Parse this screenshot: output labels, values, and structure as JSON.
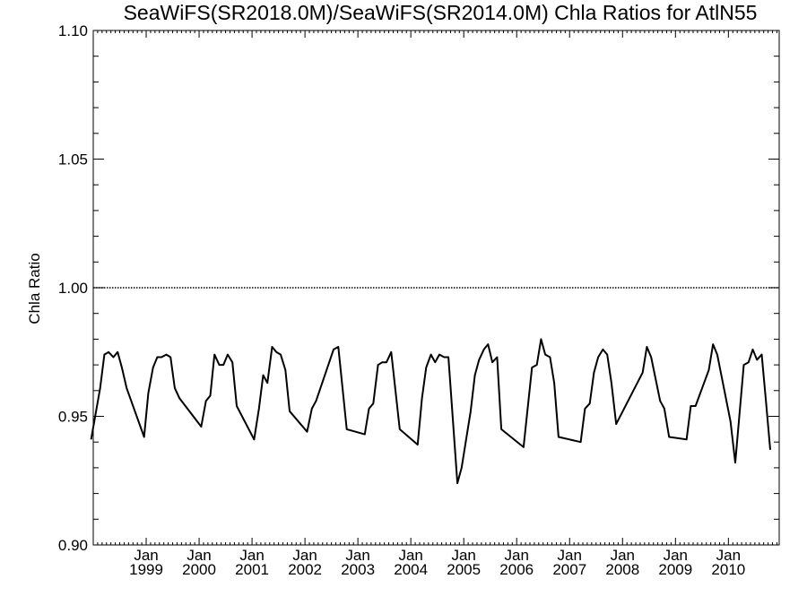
{
  "chart_data": {
    "type": "line",
    "title": "SeaWiFS(SR2018.0M)/SeaWiFS(SR2014.0M)  Chla Ratios for AtlN55",
    "xlabel": "",
    "ylabel": "Chla Ratio",
    "xlim": [
      1998.0,
      2010.96
    ],
    "ylim": [
      0.9,
      1.1
    ],
    "yticks": [
      {
        "value": 0.9,
        "label": "0.90"
      },
      {
        "value": 0.95,
        "label": "0.95"
      },
      {
        "value": 1.0,
        "label": "1.00"
      },
      {
        "value": 1.05,
        "label": "1.05"
      },
      {
        "value": 1.1,
        "label": "1.10"
      }
    ],
    "xticks": [
      {
        "value": 1999,
        "month": "Jan",
        "year": "1999"
      },
      {
        "value": 2000,
        "month": "Jan",
        "year": "2000"
      },
      {
        "value": 2001,
        "month": "Jan",
        "year": "2001"
      },
      {
        "value": 2002,
        "month": "Jan",
        "year": "2002"
      },
      {
        "value": 2003,
        "month": "Jan",
        "year": "2003"
      },
      {
        "value": 2004,
        "month": "Jan",
        "year": "2004"
      },
      {
        "value": 2005,
        "month": "Jan",
        "year": "2005"
      },
      {
        "value": 2006,
        "month": "Jan",
        "year": "2006"
      },
      {
        "value": 2007,
        "month": "Jan",
        "year": "2007"
      },
      {
        "value": 2008,
        "month": "Jan",
        "year": "2008"
      },
      {
        "value": 2009,
        "month": "Jan",
        "year": "2009"
      },
      {
        "value": 2010,
        "month": "Jan",
        "year": "2010"
      }
    ],
    "reference_line": 1.0,
    "grid": false,
    "series": [
      {
        "color": "#000000",
        "points": [
          [
            1997.96,
            0.941
          ],
          [
            1998.13,
            0.961
          ],
          [
            1998.21,
            0.974
          ],
          [
            1998.29,
            0.975
          ],
          [
            1998.38,
            0.973
          ],
          [
            1998.46,
            0.975
          ],
          [
            1998.54,
            0.969
          ],
          [
            1998.63,
            0.961
          ],
          [
            1998.96,
            0.942
          ],
          [
            1999.04,
            0.959
          ],
          [
            1999.13,
            0.969
          ],
          [
            1999.21,
            0.973
          ],
          [
            1999.29,
            0.973
          ],
          [
            1999.38,
            0.974
          ],
          [
            1999.46,
            0.973
          ],
          [
            1999.54,
            0.961
          ],
          [
            1999.63,
            0.957
          ],
          [
            2000.04,
            0.946
          ],
          [
            2000.13,
            0.956
          ],
          [
            2000.21,
            0.958
          ],
          [
            2000.29,
            0.974
          ],
          [
            2000.38,
            0.97
          ],
          [
            2000.46,
            0.97
          ],
          [
            2000.54,
            0.974
          ],
          [
            2000.63,
            0.971
          ],
          [
            2000.71,
            0.954
          ],
          [
            2001.04,
            0.941
          ],
          [
            2001.13,
            0.953
          ],
          [
            2001.21,
            0.966
          ],
          [
            2001.29,
            0.963
          ],
          [
            2001.38,
            0.977
          ],
          [
            2001.46,
            0.975
          ],
          [
            2001.54,
            0.974
          ],
          [
            2001.63,
            0.968
          ],
          [
            2001.71,
            0.952
          ],
          [
            2002.04,
            0.944
          ],
          [
            2002.13,
            0.953
          ],
          [
            2002.21,
            0.956
          ],
          [
            2002.54,
            0.976
          ],
          [
            2002.63,
            0.977
          ],
          [
            2002.79,
            0.945
          ],
          [
            2003.13,
            0.943
          ],
          [
            2003.21,
            0.953
          ],
          [
            2003.29,
            0.955
          ],
          [
            2003.38,
            0.97
          ],
          [
            2003.46,
            0.971
          ],
          [
            2003.54,
            0.971
          ],
          [
            2003.63,
            0.975
          ],
          [
            2003.79,
            0.945
          ],
          [
            2004.13,
            0.939
          ],
          [
            2004.21,
            0.957
          ],
          [
            2004.29,
            0.969
          ],
          [
            2004.38,
            0.974
          ],
          [
            2004.46,
            0.971
          ],
          [
            2004.54,
            0.974
          ],
          [
            2004.63,
            0.973
          ],
          [
            2004.71,
            0.973
          ],
          [
            2004.88,
            0.924
          ],
          [
            2004.96,
            0.93
          ],
          [
            2005.13,
            0.952
          ],
          [
            2005.21,
            0.966
          ],
          [
            2005.29,
            0.972
          ],
          [
            2005.38,
            0.976
          ],
          [
            2005.46,
            0.978
          ],
          [
            2005.54,
            0.971
          ],
          [
            2005.63,
            0.973
          ],
          [
            2005.71,
            0.945
          ],
          [
            2006.13,
            0.938
          ],
          [
            2006.29,
            0.969
          ],
          [
            2006.38,
            0.97
          ],
          [
            2006.46,
            0.98
          ],
          [
            2006.54,
            0.974
          ],
          [
            2006.63,
            0.973
          ],
          [
            2006.71,
            0.963
          ],
          [
            2006.79,
            0.942
          ],
          [
            2007.21,
            0.94
          ],
          [
            2007.29,
            0.953
          ],
          [
            2007.38,
            0.955
          ],
          [
            2007.46,
            0.967
          ],
          [
            2007.54,
            0.973
          ],
          [
            2007.63,
            0.976
          ],
          [
            2007.71,
            0.974
          ],
          [
            2007.79,
            0.963
          ],
          [
            2007.88,
            0.947
          ],
          [
            2008.38,
            0.967
          ],
          [
            2008.46,
            0.977
          ],
          [
            2008.54,
            0.973
          ],
          [
            2008.71,
            0.956
          ],
          [
            2008.79,
            0.953
          ],
          [
            2008.88,
            0.942
          ],
          [
            2009.21,
            0.941
          ],
          [
            2009.29,
            0.954
          ],
          [
            2009.38,
            0.954
          ],
          [
            2009.63,
            0.968
          ],
          [
            2009.71,
            0.978
          ],
          [
            2009.79,
            0.974
          ],
          [
            2010.04,
            0.948
          ],
          [
            2010.13,
            0.932
          ],
          [
            2010.29,
            0.97
          ],
          [
            2010.38,
            0.971
          ],
          [
            2010.46,
            0.976
          ],
          [
            2010.54,
            0.972
          ],
          [
            2010.63,
            0.974
          ],
          [
            2010.71,
            0.956
          ],
          [
            2010.79,
            0.937
          ]
        ]
      }
    ]
  }
}
